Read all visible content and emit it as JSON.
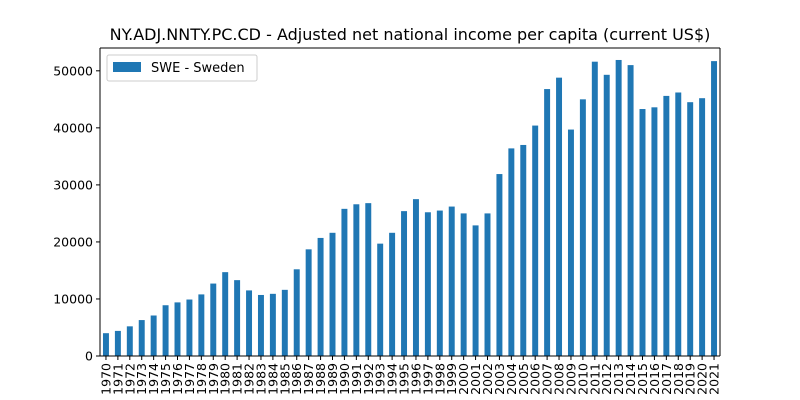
{
  "chart_data": {
    "type": "bar",
    "title": "NY.ADJ.NNTY.PC.CD - Adjusted net national income per capita (current US$)",
    "xlabel": "",
    "ylabel": "",
    "ylim": [
      0,
      54000
    ],
    "yticks": [
      0,
      10000,
      20000,
      30000,
      40000,
      50000
    ],
    "grid": false,
    "legend_position": "upper-left",
    "categories": [
      "1970",
      "1971",
      "1972",
      "1973",
      "1974",
      "1975",
      "1976",
      "1977",
      "1978",
      "1979",
      "1980",
      "1981",
      "1982",
      "1983",
      "1984",
      "1985",
      "1986",
      "1987",
      "1988",
      "1989",
      "1990",
      "1991",
      "1992",
      "1993",
      "1994",
      "1995",
      "1996",
      "1997",
      "1998",
      "1999",
      "2000",
      "2001",
      "2002",
      "2003",
      "2004",
      "2005",
      "2006",
      "2007",
      "2008",
      "2009",
      "2010",
      "2011",
      "2012",
      "2013",
      "2014",
      "2015",
      "2016",
      "2017",
      "2018",
      "2019",
      "2020",
      "2021"
    ],
    "series": [
      {
        "name": "SWE - Sweden",
        "color": "#1f77b4",
        "values": [
          4000,
          4400,
          5200,
          6300,
          7100,
          8900,
          9400,
          9900,
          10800,
          12700,
          14700,
          13300,
          11500,
          10700,
          10900,
          11600,
          15200,
          18700,
          20700,
          21600,
          25800,
          26600,
          26800,
          19700,
          21600,
          25400,
          27500,
          25200,
          25500,
          26200,
          25000,
          22900,
          25000,
          31900,
          36400,
          37000,
          40400,
          46800,
          48800,
          39700,
          45000,
          51600,
          49300,
          51900,
          51000,
          43300,
          43600,
          45600,
          46200,
          44500,
          45200,
          51700
        ]
      }
    ]
  }
}
